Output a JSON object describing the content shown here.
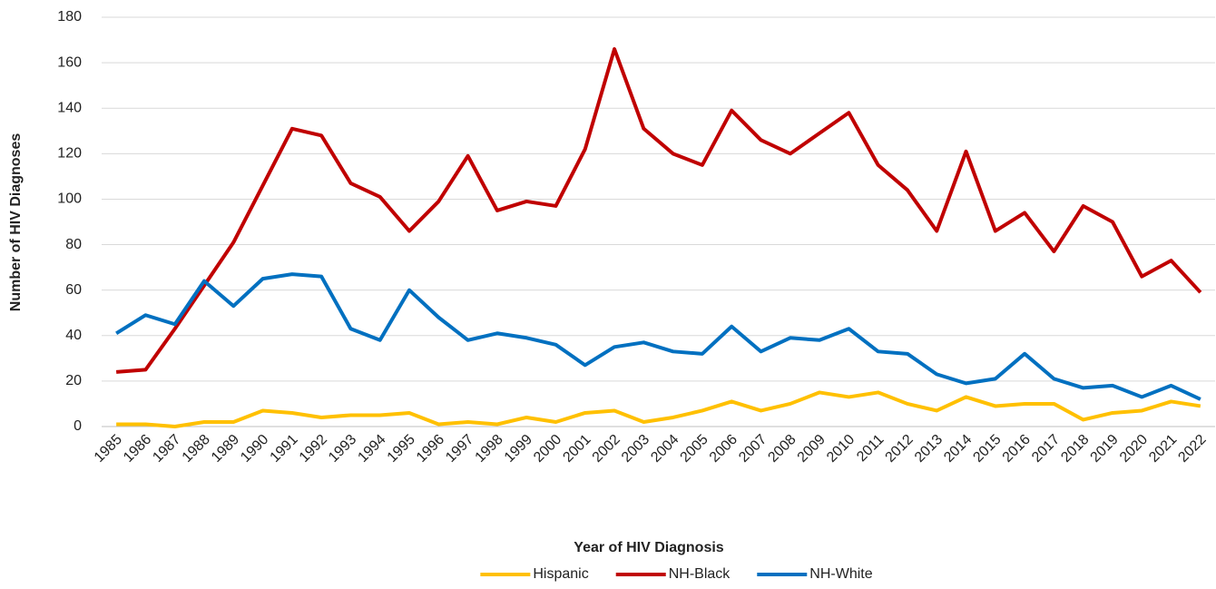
{
  "chart_data": {
    "type": "line",
    "x_label": "Year of HIV Diagnosis",
    "y_label": "Number of HIV Diagnoses",
    "categories": [
      "1985",
      "1986",
      "1987",
      "1988",
      "1989",
      "1990",
      "1991",
      "1992",
      "1993",
      "1994",
      "1995",
      "1996",
      "1997",
      "1998",
      "1999",
      "2000",
      "2001",
      "2002",
      "2003",
      "2004",
      "2005",
      "2006",
      "2007",
      "2008",
      "2009",
      "2010",
      "2011",
      "2012",
      "2013",
      "2014",
      "2015",
      "2016",
      "2017",
      "2018",
      "2019",
      "2020",
      "2021",
      "2022"
    ],
    "series": [
      {
        "name": "Hispanic",
        "color": "#ffc000",
        "values": [
          1,
          1,
          0,
          2,
          2,
          7,
          6,
          4,
          5,
          5,
          6,
          1,
          2,
          1,
          4,
          2,
          6,
          7,
          2,
          4,
          7,
          11,
          7,
          10,
          15,
          13,
          15,
          10,
          7,
          13,
          9,
          10,
          10,
          3,
          6,
          7,
          11,
          9
        ]
      },
      {
        "name": "NH-Black",
        "color": "#c00000",
        "values": [
          24,
          25,
          43,
          62,
          81,
          106,
          131,
          128,
          107,
          101,
          86,
          99,
          119,
          95,
          99,
          97,
          122,
          166,
          131,
          120,
          115,
          139,
          126,
          120,
          129,
          138,
          115,
          104,
          86,
          121,
          86,
          94,
          77,
          97,
          90,
          66,
          73,
          59
        ]
      },
      {
        "name": "NH-White",
        "color": "#0070c0",
        "values": [
          41,
          49,
          45,
          64,
          53,
          65,
          67,
          66,
          43,
          38,
          60,
          48,
          38,
          41,
          39,
          36,
          27,
          35,
          37,
          33,
          32,
          44,
          33,
          39,
          38,
          43,
          33,
          32,
          23,
          19,
          21,
          32,
          21,
          17,
          18,
          13,
          18,
          12
        ]
      }
    ],
    "ylim": [
      0,
      180
    ],
    "yticks": [
      0,
      20,
      40,
      60,
      80,
      100,
      120,
      140,
      160,
      180
    ],
    "grid": true,
    "legend": "bottom"
  }
}
